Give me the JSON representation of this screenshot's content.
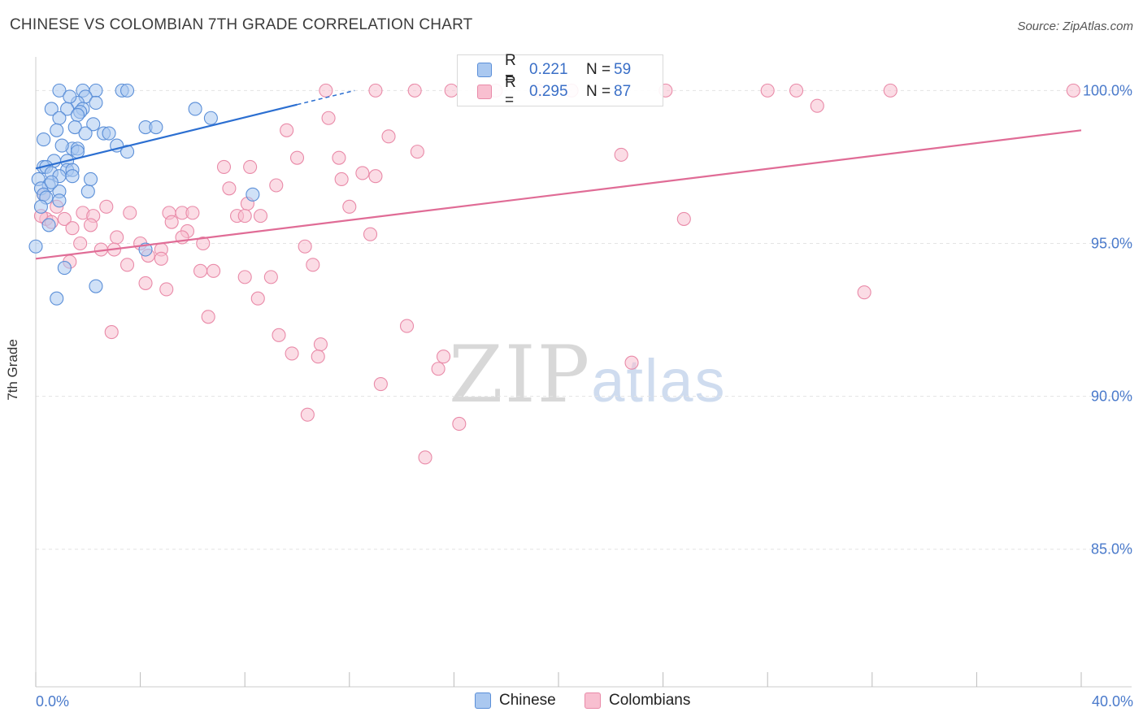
{
  "header": {
    "title": "CHINESE VS COLOMBIAN 7TH GRADE CORRELATION CHART",
    "source": "Source: ZipAtlas.com"
  },
  "watermark": {
    "zip": "ZIP",
    "atlas": "atlas"
  },
  "legend_top": {
    "rows": [
      {
        "r_label": "R =",
        "r_value": "0.221",
        "n_label": "N =",
        "n_value": "59"
      },
      {
        "r_label": "R =",
        "r_value": "0.295",
        "n_label": "N =",
        "n_value": "87"
      }
    ]
  },
  "legend_bottom": {
    "items": [
      "Chinese",
      "Colombians"
    ]
  },
  "colors": {
    "chinese_fill": "#aac8f0",
    "chinese_stroke": "#5b8fd8",
    "chinese_line": "#2c6fd1",
    "colombian_fill": "#f8bfd0",
    "colombian_stroke": "#e98aa8",
    "colombian_line": "#e06c96",
    "tick_label": "#4a7acb",
    "grid": "#e4e4e4"
  },
  "chart_data": {
    "type": "scatter",
    "title": "CHINESE VS COLOMBIAN 7TH GRADE CORRELATION CHART",
    "xlabel": "",
    "ylabel": "7th Grade",
    "xlim": [
      0,
      40
    ],
    "ylim": [
      80.5,
      101.1
    ],
    "x_tick_labels": [
      "0.0%",
      "40.0%"
    ],
    "y_ticks": [
      85,
      90,
      95,
      100
    ],
    "y_tick_labels": [
      "85.0%",
      "90.0%",
      "95.0%",
      "100.0%"
    ],
    "grid": true,
    "legend_position": "bottom",
    "series": [
      {
        "name": "Chinese",
        "R": 0.221,
        "N": 59,
        "trend": {
          "x0": 0.0,
          "y0": 97.45,
          "x1": 12.2,
          "y1": 100.0,
          "solid_until": 10.0
        },
        "points": [
          [
            0.9,
            100.0
          ],
          [
            1.8,
            100.0
          ],
          [
            2.3,
            100.0
          ],
          [
            3.3,
            100.0
          ],
          [
            3.5,
            100.0
          ],
          [
            1.9,
            99.8
          ],
          [
            2.3,
            99.6
          ],
          [
            1.6,
            99.6
          ],
          [
            0.6,
            99.4
          ],
          [
            1.2,
            99.4
          ],
          [
            1.8,
            99.4
          ],
          [
            6.1,
            99.4
          ],
          [
            1.7,
            99.3
          ],
          [
            1.6,
            99.2
          ],
          [
            0.9,
            99.1
          ],
          [
            6.7,
            99.1
          ],
          [
            2.2,
            98.9
          ],
          [
            1.5,
            98.8
          ],
          [
            4.2,
            98.8
          ],
          [
            4.6,
            98.8
          ],
          [
            0.8,
            98.7
          ],
          [
            1.9,
            98.6
          ],
          [
            2.6,
            98.6
          ],
          [
            2.8,
            98.6
          ],
          [
            0.3,
            98.4
          ],
          [
            3.1,
            98.2
          ],
          [
            1.4,
            98.1
          ],
          [
            1.6,
            98.1
          ],
          [
            3.5,
            98.0
          ],
          [
            1.6,
            98.0
          ],
          [
            0.7,
            97.7
          ],
          [
            1.2,
            97.7
          ],
          [
            0.3,
            97.5
          ],
          [
            0.4,
            97.5
          ],
          [
            1.2,
            97.4
          ],
          [
            1.4,
            97.4
          ],
          [
            0.6,
            97.3
          ],
          [
            1.4,
            97.2
          ],
          [
            0.9,
            97.2
          ],
          [
            0.1,
            97.1
          ],
          [
            0.5,
            96.9
          ],
          [
            0.2,
            96.8
          ],
          [
            0.9,
            96.7
          ],
          [
            2.0,
            96.7
          ],
          [
            0.3,
            96.6
          ],
          [
            8.3,
            96.6
          ],
          [
            0.9,
            96.4
          ],
          [
            0.5,
            95.6
          ],
          [
            0.0,
            94.9
          ],
          [
            4.2,
            94.8
          ],
          [
            1.1,
            94.2
          ],
          [
            2.3,
            93.6
          ],
          [
            0.8,
            93.2
          ],
          [
            0.4,
            96.5
          ],
          [
            0.6,
            97.0
          ],
          [
            1.0,
            98.2
          ],
          [
            2.1,
            97.1
          ],
          [
            0.2,
            96.2
          ],
          [
            1.3,
            99.8
          ]
        ]
      },
      {
        "name": "Colombians",
        "R": 0.295,
        "N": 87,
        "trend": {
          "x0": 0.0,
          "y0": 94.5,
          "x1": 40.0,
          "y1": 98.7
        },
        "points": [
          [
            11.1,
            100.0
          ],
          [
            13.0,
            100.0
          ],
          [
            14.5,
            100.0
          ],
          [
            15.9,
            100.0
          ],
          [
            17.6,
            100.0
          ],
          [
            19.2,
            100.0
          ],
          [
            20.5,
            100.0
          ],
          [
            24.1,
            100.0
          ],
          [
            28.0,
            100.0
          ],
          [
            29.1,
            100.0
          ],
          [
            32.7,
            100.0
          ],
          [
            39.7,
            100.0
          ],
          [
            29.9,
            99.5
          ],
          [
            11.2,
            99.1
          ],
          [
            9.6,
            98.7
          ],
          [
            13.5,
            98.5
          ],
          [
            14.6,
            98.0
          ],
          [
            22.4,
            97.9
          ],
          [
            10.0,
            97.8
          ],
          [
            11.6,
            97.8
          ],
          [
            7.2,
            97.5
          ],
          [
            8.2,
            97.5
          ],
          [
            12.5,
            97.3
          ],
          [
            13.0,
            97.2
          ],
          [
            11.7,
            97.1
          ],
          [
            9.2,
            96.9
          ],
          [
            7.4,
            96.8
          ],
          [
            8.1,
            96.3
          ],
          [
            0.8,
            96.2
          ],
          [
            2.7,
            96.2
          ],
          [
            12.0,
            96.2
          ],
          [
            3.6,
            96.0
          ],
          [
            5.1,
            96.0
          ],
          [
            5.6,
            96.0
          ],
          [
            6.0,
            96.0
          ],
          [
            7.7,
            95.9
          ],
          [
            8.0,
            95.9
          ],
          [
            8.6,
            95.9
          ],
          [
            1.8,
            96.0
          ],
          [
            2.2,
            95.9
          ],
          [
            0.4,
            95.8
          ],
          [
            0.6,
            95.7
          ],
          [
            1.1,
            95.8
          ],
          [
            24.8,
            95.8
          ],
          [
            5.2,
            95.7
          ],
          [
            2.1,
            95.6
          ],
          [
            1.4,
            95.5
          ],
          [
            5.8,
            95.4
          ],
          [
            12.8,
            95.3
          ],
          [
            3.1,
            95.2
          ],
          [
            5.6,
            95.2
          ],
          [
            1.7,
            95.0
          ],
          [
            4.0,
            95.0
          ],
          [
            6.4,
            95.0
          ],
          [
            10.3,
            94.9
          ],
          [
            2.5,
            94.8
          ],
          [
            3.0,
            94.8
          ],
          [
            4.8,
            94.8
          ],
          [
            4.3,
            94.6
          ],
          [
            4.8,
            94.5
          ],
          [
            1.3,
            94.4
          ],
          [
            3.5,
            94.3
          ],
          [
            10.6,
            94.3
          ],
          [
            6.3,
            94.1
          ],
          [
            6.8,
            94.1
          ],
          [
            8.0,
            93.9
          ],
          [
            9.0,
            93.9
          ],
          [
            4.2,
            93.7
          ],
          [
            5.0,
            93.5
          ],
          [
            31.7,
            93.4
          ],
          [
            8.5,
            93.2
          ],
          [
            6.6,
            92.6
          ],
          [
            14.2,
            92.3
          ],
          [
            2.9,
            92.1
          ],
          [
            9.3,
            92.0
          ],
          [
            10.9,
            91.7
          ],
          [
            9.8,
            91.4
          ],
          [
            10.8,
            91.3
          ],
          [
            15.6,
            91.3
          ],
          [
            22.8,
            91.1
          ],
          [
            15.4,
            90.9
          ],
          [
            13.2,
            90.4
          ],
          [
            10.4,
            89.4
          ],
          [
            16.2,
            89.1
          ],
          [
            14.9,
            88.0
          ],
          [
            0.2,
            95.9
          ],
          [
            0.3,
            96.6
          ]
        ]
      }
    ]
  }
}
